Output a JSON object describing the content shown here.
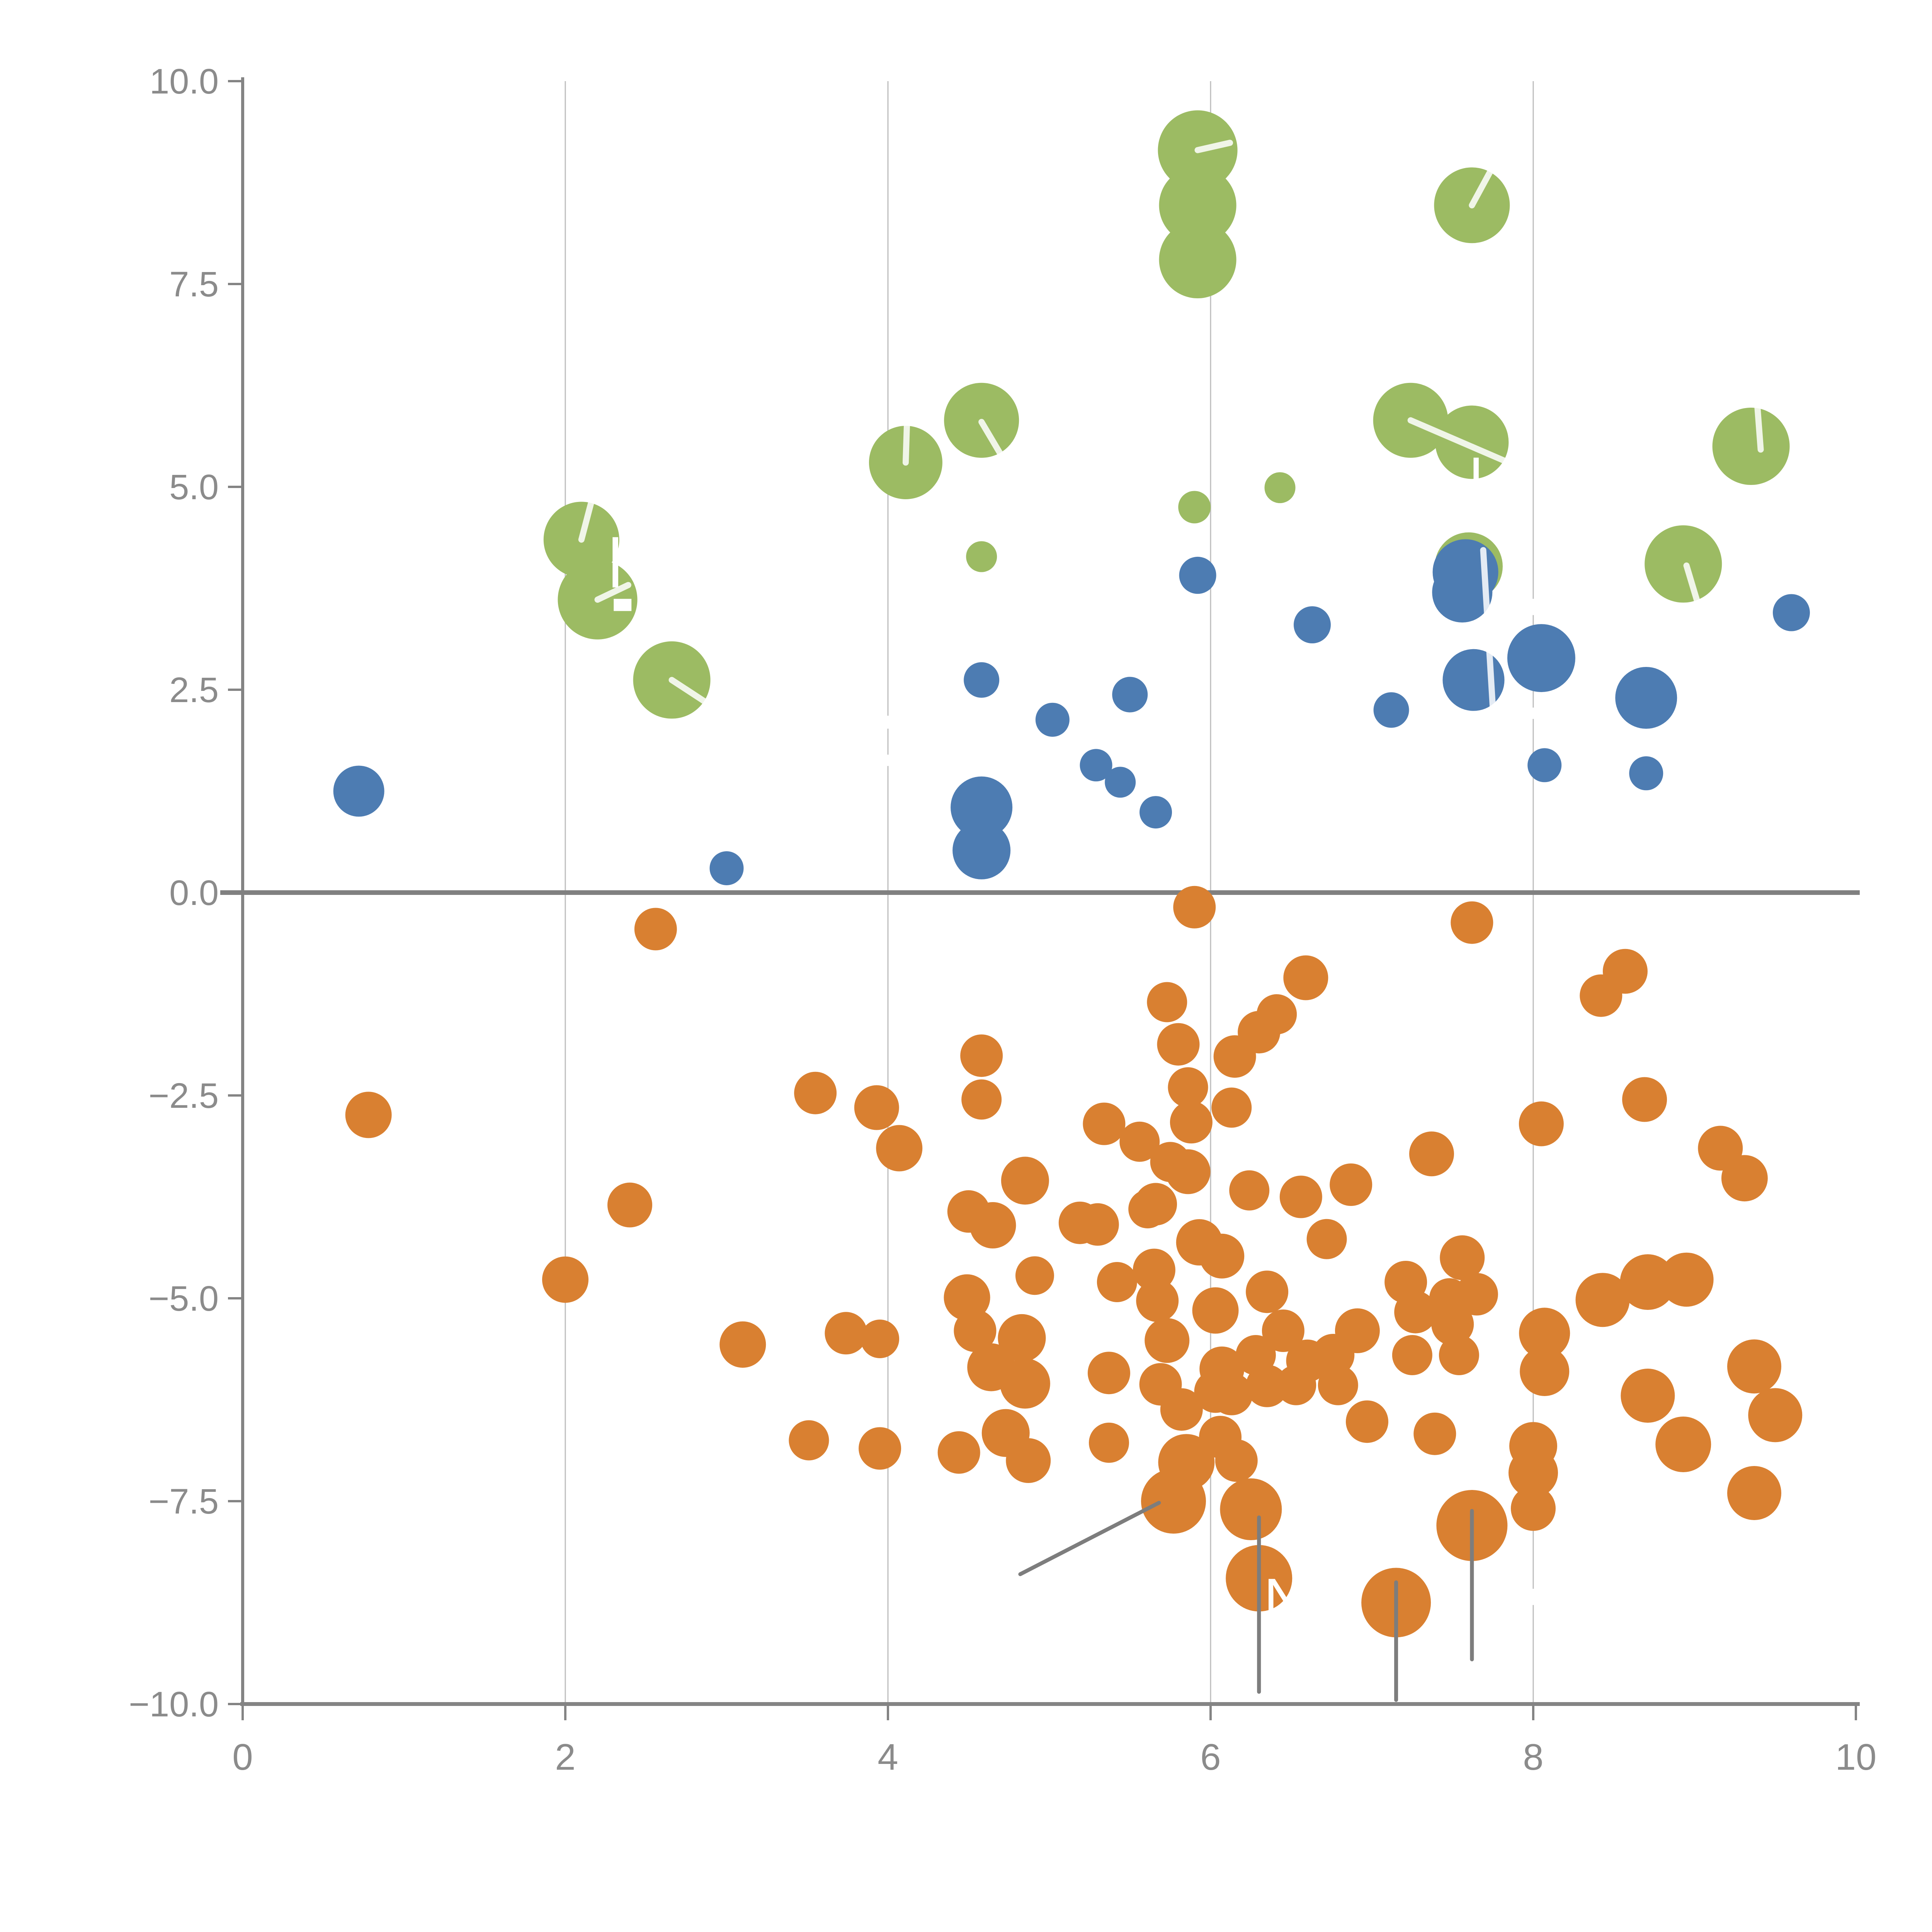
{
  "chart_data": {
    "type": "scatter",
    "title": "",
    "xlabel": "",
    "ylabel": "",
    "xlim": [
      0,
      10
    ],
    "ylim": [
      -10,
      10
    ],
    "grid": {
      "vertical_gridlines_at_x": [
        2,
        4,
        6,
        8
      ],
      "horizontal_gridlines": false
    },
    "x_ticks": [
      {
        "value": 0,
        "label": "0"
      },
      {
        "value": 2,
        "label": "2"
      },
      {
        "value": 4,
        "label": "4"
      },
      {
        "value": 6,
        "label": "6"
      },
      {
        "value": 8,
        "label": "8"
      },
      {
        "value": 10,
        "label": "10"
      }
    ],
    "y_ticks": [
      {
        "value": 10,
        "label": "10.0"
      },
      {
        "value": 7.5,
        "label": "7.5"
      },
      {
        "value": 5,
        "label": "5.0"
      },
      {
        "value": 2.5,
        "label": "2.5"
      },
      {
        "value": 0,
        "label": "0.0"
      },
      {
        "value": -2.5,
        "label": "−2.5"
      },
      {
        "value": -5,
        "label": "−5.0"
      },
      {
        "value": -7.5,
        "label": "−7.5"
      },
      {
        "value": -10,
        "label": "−10.0"
      }
    ],
    "zero_line_y": 0,
    "legend": "none",
    "series": [
      {
        "name": "green-bubbles",
        "color": "#9cbb63",
        "points": [
          [
            2.1,
            4.35,
            98
          ],
          [
            2.2,
            3.61,
            103
          ],
          [
            2.66,
            2.62,
            100
          ],
          [
            4.11,
            5.3,
            95
          ],
          [
            4.58,
            5.82,
            97
          ],
          [
            4.58,
            4.14,
            40
          ],
          [
            5.9,
            4.75,
            42
          ],
          [
            6.43,
            4.99,
            40
          ],
          [
            5.92,
            9.15,
            103
          ],
          [
            5.92,
            8.47,
            100
          ],
          [
            5.92,
            7.8,
            100
          ],
          [
            7.62,
            8.47,
            98
          ],
          [
            7.24,
            5.82,
            97
          ],
          [
            7.62,
            5.55,
            95
          ],
          [
            7.6,
            4.02,
            88
          ],
          [
            8.93,
            4.05,
            100
          ],
          [
            9.35,
            5.5,
            100
          ]
        ]
      },
      {
        "name": "blue-bubbles",
        "color": "#4d7cb2",
        "points": [
          [
            0.72,
            1.25,
            66
          ],
          [
            3.0,
            0.3,
            44
          ],
          [
            4.58,
            2.62,
            46
          ],
          [
            4.58,
            1.05,
            80
          ],
          [
            4.58,
            0.52,
            75
          ],
          [
            5.02,
            2.13,
            44
          ],
          [
            5.29,
            1.57,
            42
          ],
          [
            5.44,
            1.36,
            40
          ],
          [
            5.5,
            2.44,
            46
          ],
          [
            5.66,
            0.99,
            42
          ],
          [
            5.92,
            3.91,
            48
          ],
          [
            6.63,
            3.3,
            48
          ],
          [
            7.12,
            2.25,
            46
          ],
          [
            7.58,
            3.95,
            85
          ],
          [
            7.56,
            3.7,
            78
          ],
          [
            7.63,
            2.62,
            80
          ],
          [
            8.05,
            2.89,
            88
          ],
          [
            8.07,
            1.57,
            44
          ],
          [
            8.7,
            2.4,
            80
          ],
          [
            8.7,
            1.47,
            44
          ],
          [
            9.6,
            3.45,
            48
          ]
        ]
      },
      {
        "name": "orange-bubbles",
        "color": "#d98031",
        "points": [
          [
            0.78,
            -2.74,
            60
          ],
          [
            2.0,
            -4.77,
            60
          ],
          [
            2.4,
            -3.85,
            58
          ],
          [
            2.56,
            -0.45,
            55
          ],
          [
            3.1,
            -5.57,
            60
          ],
          [
            3.55,
            -2.47,
            55
          ],
          [
            3.51,
            -6.75,
            52
          ],
          [
            3.74,
            -5.43,
            55
          ],
          [
            3.95,
            -5.5,
            50
          ],
          [
            3.93,
            -2.65,
            58
          ],
          [
            3.95,
            -6.85,
            55
          ],
          [
            4.07,
            -3.15,
            60
          ],
          [
            4.44,
            -6.9,
            55
          ],
          [
            4.49,
            -4.99,
            60
          ],
          [
            4.5,
            -3.93,
            55
          ],
          [
            4.54,
            -5.4,
            55
          ],
          [
            4.58,
            -2.01,
            55
          ],
          [
            4.58,
            -2.55,
            52
          ],
          [
            4.65,
            -4.1,
            60
          ],
          [
            4.64,
            -5.85,
            62
          ],
          [
            4.73,
            -6.66,
            62
          ],
          [
            4.85,
            -3.55,
            62
          ],
          [
            4.83,
            -5.49,
            62
          ],
          [
            4.85,
            -6.05,
            65
          ],
          [
            4.87,
            -7.0,
            58
          ],
          [
            4.91,
            -4.72,
            50
          ],
          [
            5.19,
            -4.07,
            55
          ],
          [
            5.3,
            -4.09,
            55
          ],
          [
            5.34,
            -2.85,
            55
          ],
          [
            5.37,
            -5.92,
            55
          ],
          [
            5.37,
            -6.78,
            52
          ],
          [
            5.42,
            -4.8,
            52
          ],
          [
            5.56,
            -3.07,
            52
          ],
          [
            5.61,
            -3.9,
            50
          ],
          [
            5.66,
            -3.84,
            55
          ],
          [
            5.65,
            -4.65,
            55
          ],
          [
            5.67,
            -5.03,
            55
          ],
          [
            5.73,
            -5.52,
            58
          ],
          [
            5.69,
            -6.06,
            55
          ],
          [
            5.75,
            -3.32,
            52
          ],
          [
            5.77,
            -7.5,
            84
          ],
          [
            5.73,
            -1.35,
            52
          ],
          [
            5.8,
            -1.87,
            55
          ],
          [
            5.82,
            -6.37,
            55
          ],
          [
            5.85,
            -7.02,
            73
          ],
          [
            5.86,
            -2.4,
            52
          ],
          [
            5.88,
            -2.83,
            55
          ],
          [
            5.9,
            -0.18,
            55
          ],
          [
            5.86,
            -3.44,
            58
          ],
          [
            5.93,
            -4.31,
            60
          ],
          [
            6.03,
            -5.15,
            60
          ],
          [
            6.03,
            -6.15,
            55
          ],
          [
            6.07,
            -4.48,
            58
          ],
          [
            6.07,
            -5.87,
            58
          ],
          [
            6.13,
            -2.65,
            52
          ],
          [
            6.15,
            -2.02,
            55
          ],
          [
            6.13,
            -6.18,
            55
          ],
          [
            6.06,
            -6.71,
            55
          ],
          [
            6.16,
            -7.0,
            55
          ],
          [
            6.25,
            -7.6,
            80
          ],
          [
            6.3,
            -8.45,
            86
          ],
          [
            6.24,
            -3.67,
            52
          ],
          [
            6.35,
            -4.92,
            55
          ],
          [
            6.28,
            -5.7,
            52
          ],
          [
            6.3,
            -1.72,
            55
          ],
          [
            6.41,
            -1.5,
            52
          ],
          [
            6.35,
            -6.08,
            55
          ],
          [
            6.45,
            -5.4,
            55
          ],
          [
            6.53,
            -6.07,
            52
          ],
          [
            6.56,
            -3.75,
            55
          ],
          [
            6.59,
            -1.05,
            58
          ],
          [
            6.6,
            -5.77,
            55
          ],
          [
            6.72,
            -4.27,
            52
          ],
          [
            6.76,
            -5.7,
            55
          ],
          [
            6.79,
            -6.07,
            52
          ],
          [
            6.87,
            -3.6,
            55
          ],
          [
            6.91,
            -5.4,
            58
          ],
          [
            6.97,
            -6.52,
            55
          ],
          [
            7.15,
            -8.75,
            90
          ],
          [
            7.21,
            -4.8,
            55
          ],
          [
            7.25,
            -5.7,
            52
          ],
          [
            7.27,
            -5.17,
            55
          ],
          [
            7.37,
            -3.22,
            58
          ],
          [
            7.39,
            -6.67,
            55
          ],
          [
            7.48,
            -5.0,
            52
          ],
          [
            7.5,
            -5.32,
            55
          ],
          [
            7.54,
            -5.7,
            52
          ],
          [
            7.56,
            -4.5,
            58
          ],
          [
            7.62,
            -7.8,
            92
          ],
          [
            7.62,
            -0.37,
            55
          ],
          [
            7.65,
            -4.95,
            55
          ],
          [
            8.0,
            -6.82,
            62
          ],
          [
            8.0,
            -7.15,
            64
          ],
          [
            8.0,
            -7.59,
            58
          ],
          [
            8.05,
            -2.85,
            58
          ],
          [
            8.43,
            -5.02,
            70
          ],
          [
            8.07,
            -5.43,
            66
          ],
          [
            8.07,
            -5.9,
            64
          ],
          [
            8.42,
            -1.27,
            55
          ],
          [
            8.57,
            -0.97,
            58
          ],
          [
            8.71,
            -4.8,
            72
          ],
          [
            8.69,
            -2.55,
            58
          ],
          [
            8.71,
            -6.2,
            70
          ],
          [
            8.95,
            -4.77,
            70
          ],
          [
            8.93,
            -6.8,
            72
          ],
          [
            9.16,
            -3.15,
            58
          ],
          [
            9.31,
            -3.52,
            60
          ],
          [
            9.37,
            -5.84,
            70
          ],
          [
            9.37,
            -7.4,
            70
          ],
          [
            9.5,
            -6.44,
            70
          ]
        ]
      }
    ],
    "annotations": {
      "visible_label_text": "N",
      "label_anchor": [
        6.33,
        -8.95
      ],
      "white_leader_lines": [
        [
          2.1,
          4.35,
          2.17,
          4.88
        ],
        [
          2.2,
          3.61,
          2.39,
          3.79
        ],
        [
          2.66,
          2.62,
          2.86,
          2.36
        ],
        [
          5.92,
          9.15,
          6.12,
          9.24
        ],
        [
          4.11,
          5.3,
          4.12,
          5.92
        ],
        [
          4.58,
          5.8,
          4.72,
          5.33
        ],
        [
          7.24,
          5.82,
          7.87,
          5.28
        ],
        [
          7.62,
          8.47,
          7.74,
          8.91
        ],
        [
          8.95,
          4.03,
          9.03,
          3.5
        ],
        [
          9.41,
          5.46,
          9.39,
          5.98
        ],
        [
          7.69,
          4.22,
          7.76,
          1.93
        ]
      ],
      "gray_leader_lines": [
        [
          4.82,
          -8.4,
          5.68,
          -7.52
        ],
        [
          6.3,
          -7.7,
          6.3,
          -9.85
        ],
        [
          7.15,
          -8.5,
          7.15,
          -9.95
        ],
        [
          7.62,
          -7.62,
          7.62,
          -9.45
        ]
      ],
      "white_text_fragments": [
        {
          "x": 2.293,
          "y": 4.38,
          "w": 0.035,
          "h": 0.62
        },
        {
          "x": 2.3,
          "y": 3.62,
          "w": 0.11,
          "h": 0.15
        },
        {
          "x": 7.63,
          "y": 5.36,
          "w": 0.032,
          "h": 0.42
        },
        {
          "x": 7.715,
          "y": 5.09,
          "w": 0.075,
          "h": 0.07
        }
      ],
      "gridline_text_gaps": [
        {
          "x": 4,
          "y1": 2.02,
          "y2": 2.18
        },
        {
          "x": 4,
          "y1": 1.56,
          "y2": 1.7
        },
        {
          "x": 8,
          "y1": 3.42,
          "y2": 3.62
        },
        {
          "x": 8,
          "y1": 2.14,
          "y2": 2.28
        },
        {
          "x": 8,
          "y1": -8.58,
          "y2": -8.78
        }
      ]
    },
    "colors": {
      "axis": "#848484",
      "zero_line": "#808080",
      "gridline": "#bdbdbd",
      "tick_label": "#8b8b8b",
      "annotation_gray": "#7d7d7d",
      "annotation_white": "#ffffff"
    }
  }
}
